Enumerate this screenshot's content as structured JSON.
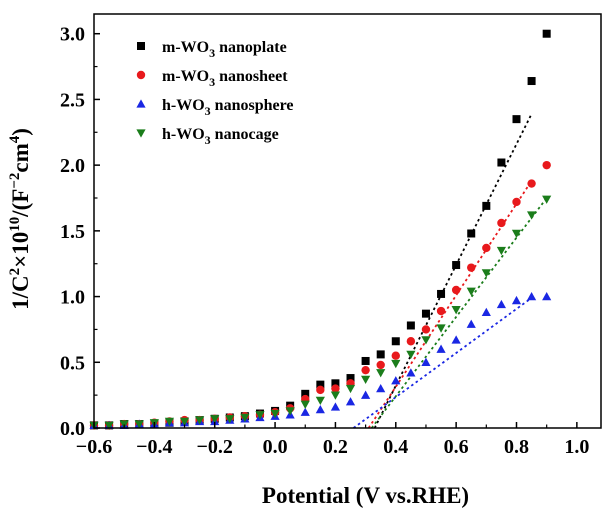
{
  "chart_data": {
    "type": "scatter",
    "xlabel": "Potential (V vs.RHE)",
    "ylabel_parts": [
      "1/C",
      "2",
      "×10",
      "10",
      "/(F",
      "−2",
      "cm",
      "4",
      ")"
    ],
    "xlim": [
      -0.6,
      1.08
    ],
    "ylim": [
      0,
      3.15
    ],
    "xticks": [
      -0.6,
      -0.4,
      -0.2,
      0.0,
      0.2,
      0.4,
      0.6,
      0.8,
      1.0
    ],
    "xtick_labels": [
      "−0.6",
      "−0.4",
      "−0.2",
      "0.0",
      "0.2",
      "0.4",
      "0.6",
      "0.8",
      "1.0"
    ],
    "yticks": [
      0.0,
      0.5,
      1.0,
      1.5,
      2.0,
      2.5,
      3.0
    ],
    "ytick_labels": [
      "0.0",
      "0.5",
      "1.0",
      "1.5",
      "2.0",
      "2.5",
      "3.0"
    ],
    "grid": false,
    "legend_position": "top-left",
    "x": [
      -0.6,
      -0.55,
      -0.5,
      -0.45,
      -0.4,
      -0.35,
      -0.3,
      -0.25,
      -0.2,
      -0.15,
      -0.1,
      -0.05,
      0.0,
      0.05,
      0.1,
      0.15,
      0.2,
      0.25,
      0.3,
      0.35,
      0.4,
      0.45,
      0.5,
      0.55,
      0.6,
      0.65,
      0.7,
      0.75,
      0.8,
      0.85,
      0.9
    ],
    "series": [
      {
        "name_parts": [
          "m-WO",
          "3",
          " nanoplate"
        ],
        "marker": "square",
        "color": "#000000",
        "values": [
          0.02,
          0.02,
          0.03,
          0.03,
          0.03,
          0.04,
          0.05,
          0.06,
          0.07,
          0.08,
          0.09,
          0.11,
          0.13,
          0.17,
          0.26,
          0.33,
          0.34,
          0.38,
          0.51,
          0.56,
          0.66,
          0.78,
          0.87,
          1.02,
          1.24,
          1.48,
          1.69,
          2.02,
          2.35,
          2.64,
          3.0
        ],
        "fit": [
          [
            0.33,
            0.0
          ],
          [
            0.85,
            2.39
          ]
        ]
      },
      {
        "name_parts": [
          "m-WO",
          "3",
          " nanosheet"
        ],
        "marker": "circle",
        "color": "#e8191c",
        "values": [
          0.02,
          0.02,
          0.03,
          0.03,
          0.04,
          0.05,
          0.06,
          0.06,
          0.07,
          0.08,
          0.09,
          0.1,
          0.12,
          0.15,
          0.22,
          0.29,
          0.3,
          0.34,
          0.44,
          0.48,
          0.55,
          0.66,
          0.75,
          0.89,
          1.05,
          1.22,
          1.37,
          1.56,
          1.72,
          1.86,
          2.0
        ],
        "fit": [
          [
            0.31,
            0.0
          ],
          [
            0.85,
            1.88
          ]
        ]
      },
      {
        "name_parts": [
          "h-WO",
          "3",
          " nanosphere"
        ],
        "marker": "triangle-up",
        "color": "#1a27e3",
        "values": [
          0.02,
          0.02,
          0.02,
          0.03,
          0.03,
          0.04,
          0.04,
          0.05,
          0.05,
          0.06,
          0.07,
          0.08,
          0.09,
          0.1,
          0.12,
          0.14,
          0.16,
          0.2,
          0.25,
          0.3,
          0.36,
          0.42,
          0.5,
          0.6,
          0.67,
          0.79,
          0.88,
          0.94,
          0.97,
          1.0,
          1.0
        ],
        "fit": [
          [
            0.26,
            0.0
          ],
          [
            0.85,
            0.99
          ]
        ]
      },
      {
        "name_parts": [
          "h-WO",
          "3",
          " nanocage"
        ],
        "marker": "triangle-down",
        "color": "#1b7d1b",
        "values": [
          0.02,
          0.02,
          0.03,
          0.03,
          0.04,
          0.05,
          0.05,
          0.06,
          0.07,
          0.07,
          0.08,
          0.1,
          0.11,
          0.13,
          0.18,
          0.21,
          0.25,
          0.3,
          0.37,
          0.42,
          0.49,
          0.56,
          0.67,
          0.76,
          0.9,
          1.04,
          1.18,
          1.35,
          1.48,
          1.62,
          1.74
        ],
        "fit": [
          [
            0.32,
            0.0
          ],
          [
            0.9,
            1.75
          ]
        ]
      }
    ]
  }
}
